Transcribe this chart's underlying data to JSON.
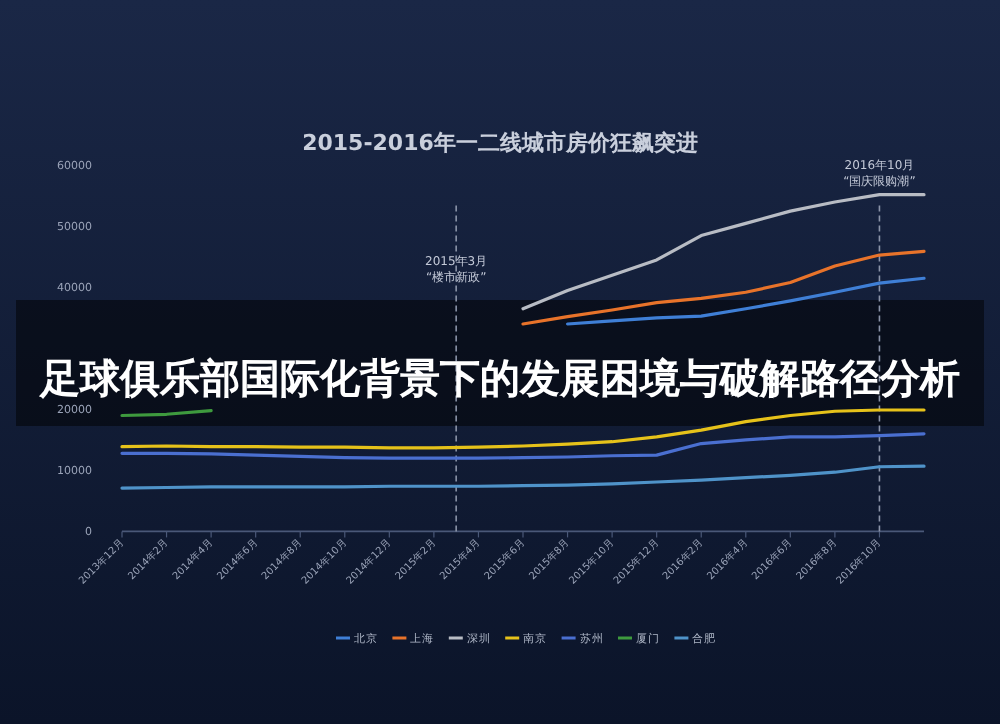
{
  "chart_data": {
    "type": "line",
    "title": "2015-2016年一二线城市房价狂飙突进",
    "x": [
      "2013-12",
      "2014-02",
      "2014-04",
      "2014-06",
      "2014-08",
      "2014-10",
      "2014-12",
      "2015-02",
      "2015-04",
      "2015-06",
      "2015-08",
      "2015-10",
      "2015-12",
      "2016-02",
      "2016-04",
      "2016-06",
      "2016-08",
      "2016-10",
      "2016-12"
    ],
    "xlim": [
      "2013-12",
      "2016-12"
    ],
    "xticks": [
      {
        "value": "2013-12",
        "label": "2013年12月"
      },
      {
        "value": "2014-02",
        "label": "2014年2月"
      },
      {
        "value": "2014-04",
        "label": "2014年4月"
      },
      {
        "value": "2014-06",
        "label": "2014年6月"
      },
      {
        "value": "2014-08",
        "label": "2014年8月"
      },
      {
        "value": "2014-10",
        "label": "2014年10月"
      },
      {
        "value": "2014-12",
        "label": "2014年12月"
      },
      {
        "value": "2015-02",
        "label": "2015年2月"
      },
      {
        "value": "2015-04",
        "label": "2015年4月"
      },
      {
        "value": "2015-06",
        "label": "2015年6月"
      },
      {
        "value": "2015-08",
        "label": "2015年8月"
      },
      {
        "value": "2015-10",
        "label": "2015年10月"
      },
      {
        "value": "2015-12",
        "label": "2015年12月"
      },
      {
        "value": "2016-02",
        "label": "2016年2月"
      },
      {
        "value": "2016-04",
        "label": "2016年4月"
      },
      {
        "value": "2016-06",
        "label": "2016年6月"
      },
      {
        "value": "2016-08",
        "label": "2016年8月"
      },
      {
        "value": "2016-10",
        "label": "2016年10月"
      }
    ],
    "ylim": [
      0,
      60000
    ],
    "yticks": [
      0,
      10000,
      20000,
      40000,
      50000,
      60000
    ],
    "series": [
      {
        "name": "北京",
        "color": "#3f7fd6",
        "values": [
          null,
          null,
          null,
          null,
          null,
          null,
          null,
          null,
          null,
          null,
          34000,
          34500,
          35000,
          35300,
          36500,
          37800,
          39200,
          40700,
          41500
        ]
      },
      {
        "name": "上海",
        "color": "#e8732a",
        "values": [
          null,
          null,
          null,
          null,
          null,
          null,
          null,
          null,
          null,
          34000,
          35200,
          36300,
          37500,
          38200,
          39200,
          40800,
          43500,
          45300,
          45900
        ]
      },
      {
        "name": "深圳",
        "color": "#b8bcc4",
        "values": [
          null,
          null,
          null,
          null,
          null,
          null,
          null,
          null,
          null,
          36500,
          39500,
          42000,
          44500,
          48500,
          50500,
          52500,
          54000,
          55200,
          55200
        ]
      },
      {
        "name": "南京",
        "color": "#e6c21a",
        "values": [
          13900,
          14000,
          13900,
          13900,
          13800,
          13800,
          13700,
          13700,
          13800,
          14000,
          14300,
          14700,
          15500,
          16600,
          18000,
          19000,
          19700,
          19900,
          19900
        ]
      },
      {
        "name": "苏州",
        "color": "#4a6fd0",
        "values": [
          12800,
          12800,
          12700,
          12500,
          12300,
          12100,
          12000,
          12000,
          12000,
          12100,
          12200,
          12400,
          12500,
          14400,
          15000,
          15500,
          15500,
          15700,
          16000
        ]
      },
      {
        "name": "厦门",
        "color": "#3e9a3e",
        "values": [
          19000,
          19200,
          19800,
          null,
          null,
          null,
          null,
          null,
          null,
          null,
          null,
          null,
          null,
          null,
          null,
          null,
          null,
          null,
          null
        ]
      },
      {
        "name": "合肥",
        "color": "#4f93c9",
        "values": [
          7100,
          7200,
          7300,
          7300,
          7300,
          7300,
          7400,
          7400,
          7400,
          7500,
          7600,
          7800,
          8100,
          8400,
          8800,
          9200,
          9700,
          10600,
          10700
        ]
      }
    ],
    "ref_lines": [
      {
        "axis": "x",
        "value": "2015-03",
        "label": "2015年3月\n“楼市新政”",
        "color": "#8a93a8",
        "line_style": "dashed"
      },
      {
        "axis": "x",
        "value": "2016-10",
        "label": "2016年10月\n“国庆限购潮”",
        "color": "#8a93a8",
        "line_style": "dashed"
      }
    ],
    "legend": "bottom",
    "grid": false,
    "annotations": [
      "足球俱乐部国际化背景下的发展困境与破解路径分析"
    ]
  }
}
